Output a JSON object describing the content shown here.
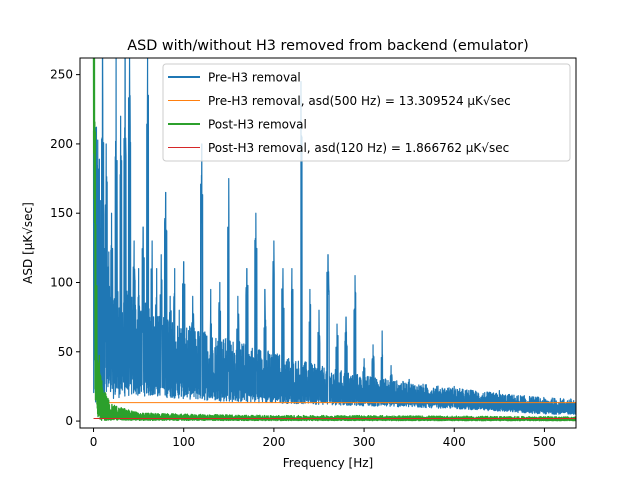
{
  "chart_data": {
    "type": "line",
    "title": "ASD with/without H3 removed from backend (emulator)",
    "xlabel": "Frequency [Hz]",
    "ylabel": "ASD [μK√sec]",
    "xlim": [
      -15,
      535
    ],
    "ylim": [
      -5,
      262
    ],
    "xticks": [
      0,
      100,
      200,
      300,
      400,
      500
    ],
    "yticks": [
      0,
      50,
      100,
      150,
      200,
      250
    ],
    "grid": false,
    "legend_position": "top-right",
    "series": [
      {
        "name": "Pre-H3 removal",
        "kind": "noisy-spectrum",
        "color": "#1f77b4",
        "line_width": 2,
        "envelope_x": [
          0,
          5,
          10,
          20,
          40,
          60,
          80,
          100,
          150,
          200,
          250,
          300,
          350,
          400,
          450,
          500,
          535
        ],
        "envelope_low": [
          0,
          5,
          10,
          16,
          18,
          18,
          17,
          16,
          14,
          13,
          12,
          11,
          10,
          9,
          7,
          5,
          5
        ],
        "envelope_high": [
          270,
          210,
          150,
          110,
          95,
          85,
          75,
          70,
          60,
          50,
          40,
          33,
          28,
          24,
          20,
          17,
          16
        ],
        "peaks": [
          {
            "x": 10,
            "y": 262
          },
          {
            "x": 14,
            "y": 200
          },
          {
            "x": 20,
            "y": 150
          },
          {
            "x": 25,
            "y": 262
          },
          {
            "x": 30,
            "y": 220
          },
          {
            "x": 35,
            "y": 262
          },
          {
            "x": 40,
            "y": 262
          },
          {
            "x": 45,
            "y": 130
          },
          {
            "x": 50,
            "y": 110
          },
          {
            "x": 55,
            "y": 140
          },
          {
            "x": 60,
            "y": 262
          },
          {
            "x": 65,
            "y": 130
          },
          {
            "x": 70,
            "y": 110
          },
          {
            "x": 75,
            "y": 120
          },
          {
            "x": 80,
            "y": 165
          },
          {
            "x": 85,
            "y": 90
          },
          {
            "x": 90,
            "y": 110
          },
          {
            "x": 95,
            "y": 80
          },
          {
            "x": 100,
            "y": 115
          },
          {
            "x": 110,
            "y": 90
          },
          {
            "x": 120,
            "y": 200
          },
          {
            "x": 130,
            "y": 95
          },
          {
            "x": 140,
            "y": 100
          },
          {
            "x": 150,
            "y": 175
          },
          {
            "x": 160,
            "y": 90
          },
          {
            "x": 170,
            "y": 110
          },
          {
            "x": 180,
            "y": 150
          },
          {
            "x": 190,
            "y": 95
          },
          {
            "x": 200,
            "y": 130
          },
          {
            "x": 210,
            "y": 110
          },
          {
            "x": 220,
            "y": 110
          },
          {
            "x": 230,
            "y": 245
          },
          {
            "x": 240,
            "y": 95
          },
          {
            "x": 250,
            "y": 80
          },
          {
            "x": 260,
            "y": 120
          },
          {
            "x": 270,
            "y": 70
          },
          {
            "x": 280,
            "y": 75
          },
          {
            "x": 290,
            "y": 105
          },
          {
            "x": 300,
            "y": 45
          },
          {
            "x": 310,
            "y": 55
          },
          {
            "x": 320,
            "y": 65
          },
          {
            "x": 330,
            "y": 40
          },
          {
            "x": 350,
            "y": 30
          },
          {
            "x": 400,
            "y": 25
          },
          {
            "x": 450,
            "y": 22
          }
        ]
      },
      {
        "name": "Pre-H3 removal, asd(500 Hz) = 13.309524 μK√sec",
        "kind": "hline",
        "color": "#ff7f0e",
        "line_width": 1,
        "value": 13.309524
      },
      {
        "name": "Post-H3 removal",
        "kind": "noisy-decay",
        "color": "#2ca02c",
        "line_width": 2,
        "envelope_x": [
          0,
          1,
          2,
          3,
          5,
          10,
          20,
          50,
          100,
          200,
          300,
          400,
          535
        ],
        "envelope_low": [
          0,
          0,
          0,
          0,
          0,
          0.5,
          0.6,
          0.5,
          0.5,
          0.4,
          0.4,
          0.3,
          0.3
        ],
        "envelope_high": [
          262,
          262,
          200,
          120,
          60,
          25,
          12,
          6,
          5,
          4,
          4,
          3.5,
          3
        ],
        "peaks": [
          {
            "x": 0,
            "y": 262
          },
          {
            "x": 1,
            "y": 262
          }
        ]
      },
      {
        "name": "Post-H3 removal, asd(120 Hz) = 1.866762 μK√sec",
        "kind": "hline",
        "color": "#d62728",
        "line_width": 1,
        "value": 1.866762
      }
    ]
  }
}
